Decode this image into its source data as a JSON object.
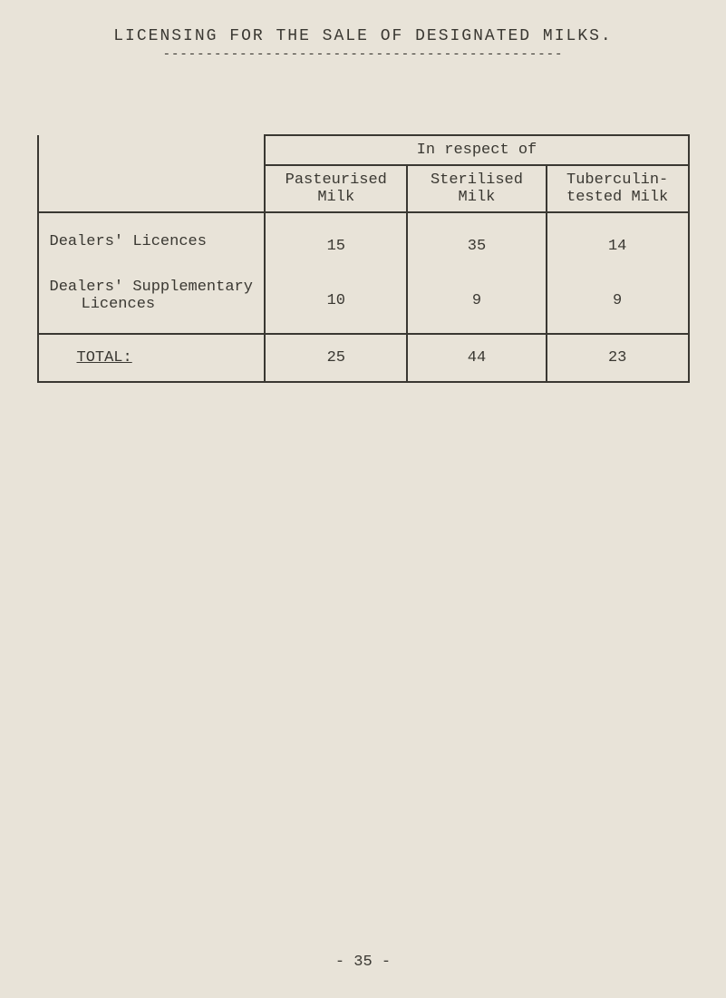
{
  "title": "LICENSING FOR THE SALE OF DESIGNATED MILKS.",
  "title_underline": "-----------------------------------------------",
  "table": {
    "spanning_header": "In respect of",
    "columns": [
      "Pasteurised Milk",
      "Sterilised Milk",
      "Tuberculin-tested Milk"
    ],
    "row_labels": {
      "dealers": "Dealers' Licences",
      "supplementary_line1": "Dealers' Supplementary",
      "supplementary_line2": "Licences",
      "total": "TOTAL:"
    },
    "rows": {
      "dealers": [
        "15",
        "35",
        "14"
      ],
      "supplementary": [
        "10",
        "9",
        "9"
      ],
      "total": [
        "25",
        "44",
        "23"
      ]
    }
  },
  "page_number": "- 35 -",
  "colors": {
    "background": "#e8e3d8",
    "text": "#3a3832",
    "border": "#3a3832"
  },
  "typography": {
    "font_family": "Courier New",
    "title_fontsize": 18,
    "body_fontsize": 17
  }
}
